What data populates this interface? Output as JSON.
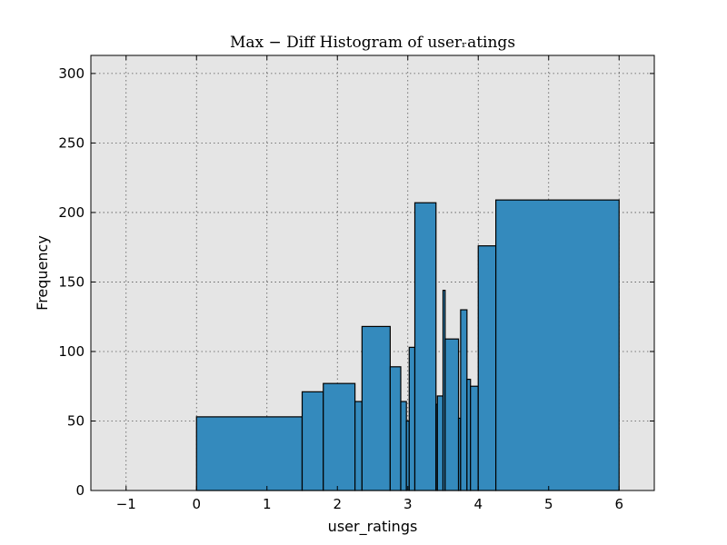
{
  "chart_data": {
    "type": "bar",
    "title": "Max − Diff Histogram of userᵣatings",
    "xlabel": "user_ratings",
    "ylabel": "Frequency",
    "xlim": [
      -1.5,
      6.5
    ],
    "ylim": [
      0,
      313
    ],
    "xticks": [
      -1,
      0,
      1,
      2,
      3,
      4,
      5,
      6
    ],
    "xtick_labels": [
      "−1",
      "0",
      "1",
      "2",
      "3",
      "4",
      "5",
      "6"
    ],
    "yticks": [
      0,
      50,
      100,
      150,
      200,
      250,
      300
    ],
    "ytick_labels": [
      "0",
      "50",
      "100",
      "150",
      "200",
      "250",
      "300"
    ],
    "grid": true,
    "bar_color": "#348abd",
    "background_color": "#e5e5e5",
    "bins": [
      {
        "start": 0.0,
        "end": 1.5,
        "value": 53
      },
      {
        "start": 1.5,
        "end": 1.8,
        "value": 71
      },
      {
        "start": 1.8,
        "end": 2.25,
        "value": 77
      },
      {
        "start": 2.25,
        "end": 2.35,
        "value": 64
      },
      {
        "start": 2.35,
        "end": 2.75,
        "value": 118
      },
      {
        "start": 2.75,
        "end": 2.9,
        "value": 89
      },
      {
        "start": 2.9,
        "end": 2.98,
        "value": 64
      },
      {
        "start": 2.98,
        "end": 3.02,
        "value": 50
      },
      {
        "start": 3.02,
        "end": 3.1,
        "value": 103
      },
      {
        "start": 3.1,
        "end": 3.4,
        "value": 207
      },
      {
        "start": 3.4,
        "end": 3.42,
        "value": 62
      },
      {
        "start": 3.42,
        "end": 3.5,
        "value": 68
      },
      {
        "start": 3.5,
        "end": 3.53,
        "value": 144
      },
      {
        "start": 3.53,
        "end": 3.72,
        "value": 109
      },
      {
        "start": 3.72,
        "end": 3.75,
        "value": 52
      },
      {
        "start": 3.75,
        "end": 3.84,
        "value": 130
      },
      {
        "start": 3.84,
        "end": 3.89,
        "value": 80
      },
      {
        "start": 3.89,
        "end": 4.0,
        "value": 75
      },
      {
        "start": 4.0,
        "end": 4.25,
        "value": 176
      },
      {
        "start": 4.25,
        "end": 6.0,
        "value": 209
      }
    ]
  }
}
